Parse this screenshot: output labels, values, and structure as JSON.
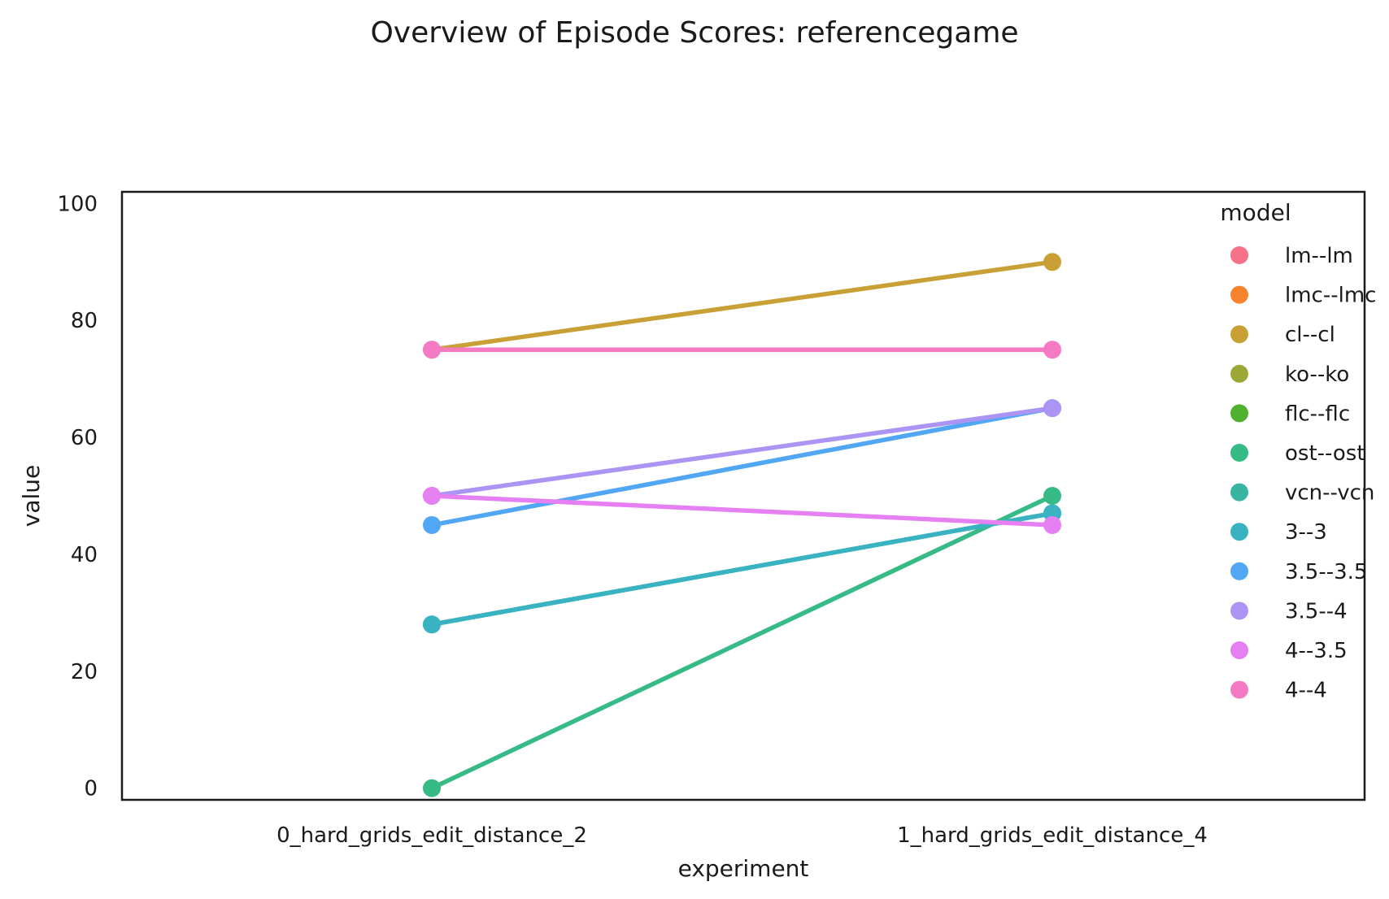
{
  "chart_data": {
    "type": "line",
    "title": "Overview of Episode Scores: referencegame",
    "xlabel": "experiment",
    "ylabel": "value",
    "categories": [
      "0_hard_grids_edit_distance_2",
      "1_hard_grids_edit_distance_4"
    ],
    "ylim": [
      -2,
      102
    ],
    "yticks": [
      0,
      20,
      40,
      60,
      80,
      100
    ],
    "grid": false,
    "legend": {
      "title": "model",
      "position": "top-right"
    },
    "series": [
      {
        "name": "lm--lm",
        "color": "#f77189",
        "values": [
          null,
          null
        ]
      },
      {
        "name": "lmc--lmc",
        "color": "#f7832e",
        "values": [
          null,
          null
        ]
      },
      {
        "name": "cl--cl",
        "color": "#c8a036",
        "values": [
          75,
          90
        ]
      },
      {
        "name": "ko--ko",
        "color": "#9ca836",
        "values": [
          null,
          null
        ]
      },
      {
        "name": "flc--flc",
        "color": "#50b131",
        "values": [
          null,
          null
        ]
      },
      {
        "name": "ost--ost",
        "color": "#36ba86",
        "values": [
          0,
          50
        ]
      },
      {
        "name": "vcn--vcn",
        "color": "#38b4a3",
        "values": [
          28,
          47
        ]
      },
      {
        "name": "3--3",
        "color": "#39b2c2",
        "values": [
          28,
          47
        ]
      },
      {
        "name": "3.5--3.5",
        "color": "#51a7f4",
        "values": [
          45,
          65
        ]
      },
      {
        "name": "3.5--4",
        "color": "#ab94f4",
        "values": [
          50,
          65
        ]
      },
      {
        "name": "4--3.5",
        "color": "#e67ff2",
        "values": [
          50,
          45
        ]
      },
      {
        "name": "4--4",
        "color": "#f57ac4",
        "values": [
          75,
          75
        ]
      }
    ]
  }
}
